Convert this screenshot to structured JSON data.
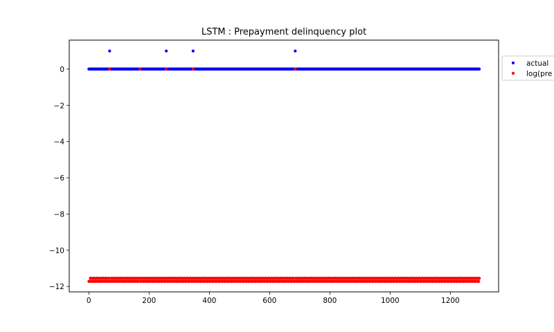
{
  "chart_data": {
    "type": "scatter",
    "title": "LSTM : Prepayment delinquency plot",
    "xlabel": "",
    "ylabel": "",
    "xlim": [
      -65,
      1360
    ],
    "ylim": [
      -12.3,
      1.6
    ],
    "x_ticks": [
      0,
      200,
      400,
      600,
      800,
      1000,
      1200
    ],
    "y_ticks": [
      0,
      -2,
      -4,
      -6,
      -8,
      -10,
      -12
    ],
    "x_tick_labels": [
      "0",
      "200",
      "400",
      "600",
      "800",
      "1000",
      "1200"
    ],
    "y_tick_labels": [
      "0",
      "−2",
      "−4",
      "−6",
      "−8",
      "−10",
      "−12"
    ],
    "grid": false,
    "legend_position": "outside-right",
    "n_points": 1297,
    "series": [
      {
        "name": "actual",
        "color": "#0000ff",
        "baseline_value": 0,
        "x_range": [
          0,
          1296
        ],
        "outliers": [
          {
            "x": 69,
            "y": 1
          },
          {
            "x": 257,
            "y": 1
          },
          {
            "x": 346,
            "y": 1
          },
          {
            "x": 685,
            "y": 1
          }
        ]
      },
      {
        "name": "log(pre",
        "color": "#ff0000",
        "levels": [
          -11.35,
          -11.55,
          -11.72
        ],
        "x_range": [
          0,
          1296
        ],
        "outliers": [
          {
            "x": 69,
            "y": 0
          },
          {
            "x": 170,
            "y": 0
          },
          {
            "x": 257,
            "y": 0
          },
          {
            "x": 346,
            "y": 0
          },
          {
            "x": 685,
            "y": 0
          }
        ]
      }
    ]
  }
}
